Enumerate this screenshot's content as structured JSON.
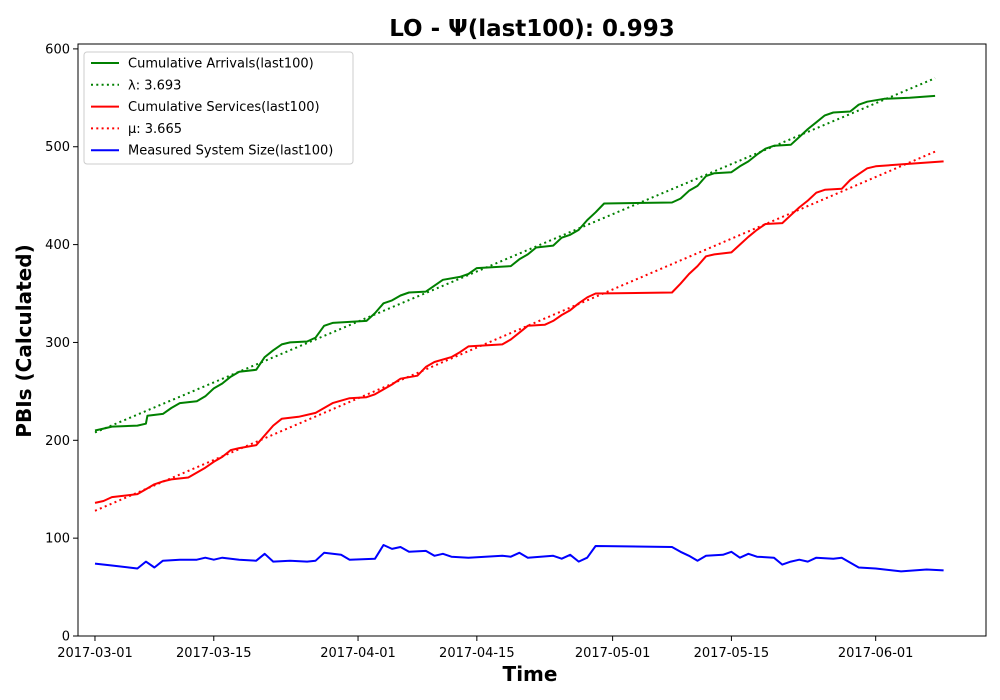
{
  "chart_data": {
    "type": "line",
    "title": "LO -  Ψ(last100): 0.993",
    "xlabel": "Time",
    "ylabel": "PBIs (Calculated)",
    "xlim": [
      "2017-02-27",
      "2017-06-14"
    ],
    "ylim": [
      0,
      605
    ],
    "x_ticks": [
      "2017-03-01",
      "2017-03-15",
      "2017-04-01",
      "2017-04-15",
      "2017-05-01",
      "2017-05-15",
      "2017-06-01"
    ],
    "y_ticks": [
      0,
      100,
      200,
      300,
      400,
      500,
      600
    ],
    "legend_position": "upper-left",
    "colors": {
      "arrivals": "#008000",
      "services": "#ff0000",
      "system": "#0000ff"
    },
    "series": [
      {
        "name": "Cumulative Arrivals(last100)",
        "legend": "Cumulative Arrivals(last100)",
        "color": "#008000",
        "style": "solid",
        "points": [
          [
            "2017-03-01",
            210
          ],
          [
            "2017-03-02",
            212
          ],
          [
            "2017-03-03",
            214
          ],
          [
            "2017-03-06",
            215
          ],
          [
            "2017-03-07",
            217
          ],
          [
            "2017-03-07",
            225
          ],
          [
            "2017-03-09",
            227
          ],
          [
            "2017-03-10",
            233
          ],
          [
            "2017-03-11",
            238
          ],
          [
            "2017-03-13",
            240
          ],
          [
            "2017-03-14",
            245
          ],
          [
            "2017-03-15",
            253
          ],
          [
            "2017-03-16",
            258
          ],
          [
            "2017-03-17",
            265
          ],
          [
            "2017-03-18",
            270
          ],
          [
            "2017-03-20",
            272
          ],
          [
            "2017-03-21",
            285
          ],
          [
            "2017-03-22",
            292
          ],
          [
            "2017-03-23",
            298
          ],
          [
            "2017-03-24",
            300
          ],
          [
            "2017-03-26",
            301
          ],
          [
            "2017-03-27",
            305
          ],
          [
            "2017-03-28",
            317
          ],
          [
            "2017-03-29",
            320
          ],
          [
            "2017-03-31",
            321
          ],
          [
            "2017-04-02",
            322
          ],
          [
            "2017-04-03",
            330
          ],
          [
            "2017-04-04",
            340
          ],
          [
            "2017-04-05",
            343
          ],
          [
            "2017-04-06",
            348
          ],
          [
            "2017-04-07",
            351
          ],
          [
            "2017-04-09",
            352
          ],
          [
            "2017-04-10",
            358
          ],
          [
            "2017-04-11",
            364
          ],
          [
            "2017-04-13",
            367
          ],
          [
            "2017-04-14",
            370
          ],
          [
            "2017-04-15",
            376
          ],
          [
            "2017-04-19",
            378
          ],
          [
            "2017-04-20",
            385
          ],
          [
            "2017-04-21",
            390
          ],
          [
            "2017-04-22",
            397
          ],
          [
            "2017-04-24",
            399
          ],
          [
            "2017-04-25",
            407
          ],
          [
            "2017-04-26",
            410
          ],
          [
            "2017-04-27",
            415
          ],
          [
            "2017-04-28",
            425
          ],
          [
            "2017-04-29",
            433
          ],
          [
            "2017-04-30",
            442
          ],
          [
            "2017-05-08",
            443
          ],
          [
            "2017-05-09",
            447
          ],
          [
            "2017-05-10",
            455
          ],
          [
            "2017-05-11",
            460
          ],
          [
            "2017-05-12",
            470
          ],
          [
            "2017-05-13",
            473
          ],
          [
            "2017-05-15",
            474
          ],
          [
            "2017-05-16",
            480
          ],
          [
            "2017-05-17",
            485
          ],
          [
            "2017-05-18",
            492
          ],
          [
            "2017-05-19",
            498
          ],
          [
            "2017-05-20",
            501
          ],
          [
            "2017-05-22",
            502
          ],
          [
            "2017-05-23",
            510
          ],
          [
            "2017-05-24",
            518
          ],
          [
            "2017-05-25",
            525
          ],
          [
            "2017-05-26",
            532
          ],
          [
            "2017-05-27",
            535
          ],
          [
            "2017-05-29",
            536
          ],
          [
            "2017-05-30",
            543
          ],
          [
            "2017-05-31",
            546
          ],
          [
            "2017-06-02",
            549
          ],
          [
            "2017-06-05",
            550
          ],
          [
            "2017-06-08",
            552
          ]
        ]
      },
      {
        "name": "λ: 3.693",
        "legend": "λ: 3.693",
        "color": "#008000",
        "style": "dotted",
        "points": [
          [
            "2017-03-01",
            208
          ],
          [
            "2017-06-08",
            570
          ]
        ]
      },
      {
        "name": "Cumulative Services(last100)",
        "legend": "Cumulative Services(last100)",
        "color": "#ff0000",
        "style": "solid",
        "points": [
          [
            "2017-03-01",
            136
          ],
          [
            "2017-03-02",
            138
          ],
          [
            "2017-03-03",
            142
          ],
          [
            "2017-03-06",
            145
          ],
          [
            "2017-03-07",
            150
          ],
          [
            "2017-03-08",
            155
          ],
          [
            "2017-03-09",
            158
          ],
          [
            "2017-03-10",
            160
          ],
          [
            "2017-03-12",
            162
          ],
          [
            "2017-03-13",
            167
          ],
          [
            "2017-03-14",
            172
          ],
          [
            "2017-03-15",
            178
          ],
          [
            "2017-03-16",
            183
          ],
          [
            "2017-03-17",
            190
          ],
          [
            "2017-03-18",
            192
          ],
          [
            "2017-03-20",
            195
          ],
          [
            "2017-03-21",
            205
          ],
          [
            "2017-03-22",
            215
          ],
          [
            "2017-03-23",
            222
          ],
          [
            "2017-03-25",
            224
          ],
          [
            "2017-03-27",
            228
          ],
          [
            "2017-03-28",
            233
          ],
          [
            "2017-03-29",
            238
          ],
          [
            "2017-03-31",
            243
          ],
          [
            "2017-04-02",
            244
          ],
          [
            "2017-04-03",
            247
          ],
          [
            "2017-04-04",
            252
          ],
          [
            "2017-04-05",
            257
          ],
          [
            "2017-04-06",
            263
          ],
          [
            "2017-04-08",
            266
          ],
          [
            "2017-04-09",
            275
          ],
          [
            "2017-04-10",
            280
          ],
          [
            "2017-04-12",
            285
          ],
          [
            "2017-04-13",
            290
          ],
          [
            "2017-04-14",
            296
          ],
          [
            "2017-04-18",
            298
          ],
          [
            "2017-04-19",
            303
          ],
          [
            "2017-04-20",
            310
          ],
          [
            "2017-04-21",
            317
          ],
          [
            "2017-04-23",
            318
          ],
          [
            "2017-04-24",
            322
          ],
          [
            "2017-04-25",
            328
          ],
          [
            "2017-04-26",
            333
          ],
          [
            "2017-04-27",
            340
          ],
          [
            "2017-04-28",
            346
          ],
          [
            "2017-04-29",
            350
          ],
          [
            "2017-05-08",
            351
          ],
          [
            "2017-05-09",
            360
          ],
          [
            "2017-05-10",
            370
          ],
          [
            "2017-05-11",
            378
          ],
          [
            "2017-05-12",
            388
          ],
          [
            "2017-05-13",
            390
          ],
          [
            "2017-05-15",
            392
          ],
          [
            "2017-05-16",
            400
          ],
          [
            "2017-05-17",
            408
          ],
          [
            "2017-05-18",
            415
          ],
          [
            "2017-05-19",
            421
          ],
          [
            "2017-05-21",
            422
          ],
          [
            "2017-05-22",
            430
          ],
          [
            "2017-05-23",
            438
          ],
          [
            "2017-05-24",
            445
          ],
          [
            "2017-05-25",
            453
          ],
          [
            "2017-05-26",
            456
          ],
          [
            "2017-05-28",
            457
          ],
          [
            "2017-05-29",
            466
          ],
          [
            "2017-05-30",
            472
          ],
          [
            "2017-05-31",
            478
          ],
          [
            "2017-06-01",
            480
          ],
          [
            "2017-06-04",
            482
          ],
          [
            "2017-06-09",
            485
          ]
        ]
      },
      {
        "name": "μ: 3.665",
        "legend": "μ: 3.665",
        "color": "#ff0000",
        "style": "dotted",
        "points": [
          [
            "2017-03-01",
            128
          ],
          [
            "2017-06-08",
            495
          ]
        ]
      },
      {
        "name": "Measured System Size(last100)",
        "legend": "Measured System Size(last100)",
        "color": "#0000ff",
        "style": "solid",
        "points": [
          [
            "2017-03-01",
            74
          ],
          [
            "2017-03-03",
            72
          ],
          [
            "2017-03-05",
            70
          ],
          [
            "2017-03-06",
            69
          ],
          [
            "2017-03-07",
            76
          ],
          [
            "2017-03-08",
            70
          ],
          [
            "2017-03-09",
            77
          ],
          [
            "2017-03-11",
            78
          ],
          [
            "2017-03-13",
            78
          ],
          [
            "2017-03-14",
            80
          ],
          [
            "2017-03-15",
            78
          ],
          [
            "2017-03-16",
            80
          ],
          [
            "2017-03-17",
            79
          ],
          [
            "2017-03-18",
            78
          ],
          [
            "2017-03-20",
            77
          ],
          [
            "2017-03-21",
            84
          ],
          [
            "2017-03-22",
            76
          ],
          [
            "2017-03-24",
            77
          ],
          [
            "2017-03-26",
            76
          ],
          [
            "2017-03-27",
            77
          ],
          [
            "2017-03-28",
            85
          ],
          [
            "2017-03-30",
            83
          ],
          [
            "2017-03-31",
            78
          ],
          [
            "2017-04-03",
            79
          ],
          [
            "2017-04-04",
            93
          ],
          [
            "2017-04-05",
            89
          ],
          [
            "2017-04-06",
            91
          ],
          [
            "2017-04-07",
            86
          ],
          [
            "2017-04-09",
            87
          ],
          [
            "2017-04-10",
            82
          ],
          [
            "2017-04-11",
            84
          ],
          [
            "2017-04-12",
            81
          ],
          [
            "2017-04-14",
            80
          ],
          [
            "2017-04-18",
            82
          ],
          [
            "2017-04-19",
            81
          ],
          [
            "2017-04-20",
            85
          ],
          [
            "2017-04-21",
            80
          ],
          [
            "2017-04-24",
            82
          ],
          [
            "2017-04-25",
            79
          ],
          [
            "2017-04-26",
            83
          ],
          [
            "2017-04-27",
            76
          ],
          [
            "2017-04-28",
            80
          ],
          [
            "2017-04-29",
            92
          ],
          [
            "2017-05-08",
            91
          ],
          [
            "2017-05-09",
            86
          ],
          [
            "2017-05-10",
            82
          ],
          [
            "2017-05-11",
            77
          ],
          [
            "2017-05-12",
            82
          ],
          [
            "2017-05-14",
            83
          ],
          [
            "2017-05-15",
            86
          ],
          [
            "2017-05-16",
            80
          ],
          [
            "2017-05-17",
            84
          ],
          [
            "2017-05-18",
            81
          ],
          [
            "2017-05-20",
            80
          ],
          [
            "2017-05-21",
            73
          ],
          [
            "2017-05-22",
            76
          ],
          [
            "2017-05-23",
            78
          ],
          [
            "2017-05-24",
            76
          ],
          [
            "2017-05-25",
            80
          ],
          [
            "2017-05-27",
            79
          ],
          [
            "2017-05-28",
            80
          ],
          [
            "2017-05-29",
            75
          ],
          [
            "2017-05-30",
            70
          ],
          [
            "2017-06-01",
            69
          ],
          [
            "2017-06-04",
            66
          ],
          [
            "2017-06-07",
            68
          ],
          [
            "2017-06-09",
            67
          ]
        ]
      }
    ]
  }
}
